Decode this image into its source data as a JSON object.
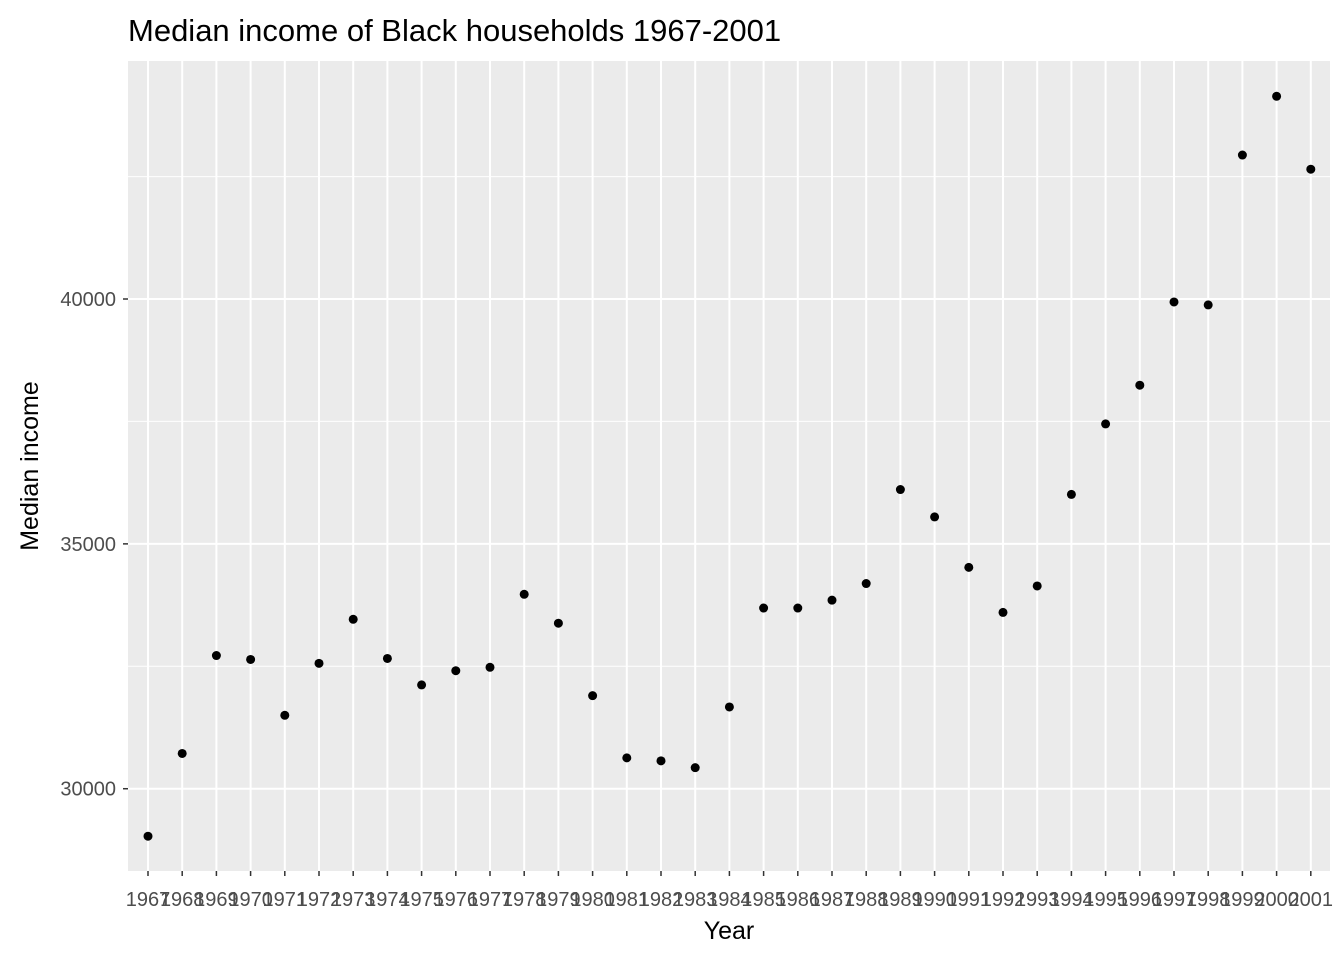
{
  "chart_data": {
    "type": "scatter",
    "title": "Median income of Black households 1967-2001",
    "xlabel": "Year",
    "ylabel": "Median income",
    "x_type": "categorical",
    "categories": [
      "1967",
      "1968",
      "1969",
      "1970",
      "1971",
      "1972",
      "1973",
      "1974",
      "1975",
      "1976",
      "1977",
      "1978",
      "1979",
      "1980",
      "1981",
      "1982",
      "1983",
      "1984",
      "1985",
      "1986",
      "1987",
      "1988",
      "1989",
      "1990",
      "1991",
      "1992",
      "1993",
      "1994",
      "1995",
      "1996",
      "1997",
      "1998",
      "1999",
      "2000",
      "2001"
    ],
    "values": [
      29030,
      30720,
      32720,
      32640,
      31500,
      32560,
      33460,
      32660,
      32120,
      32410,
      32480,
      33970,
      33380,
      31900,
      30630,
      30570,
      30430,
      31670,
      33690,
      33690,
      33850,
      34190,
      36110,
      35550,
      34520,
      33600,
      34140,
      36010,
      37450,
      38240,
      39940,
      39880,
      42940,
      44140,
      42650
    ],
    "y_ticks": [
      30000,
      35000,
      40000
    ],
    "y_tick_labels": [
      "30000",
      "35000",
      "40000"
    ],
    "ylim": [
      28320,
      44860
    ],
    "grid": true,
    "panel_color": "#ebebeb",
    "grid_color": "#ffffff",
    "point_color": "#000000"
  }
}
